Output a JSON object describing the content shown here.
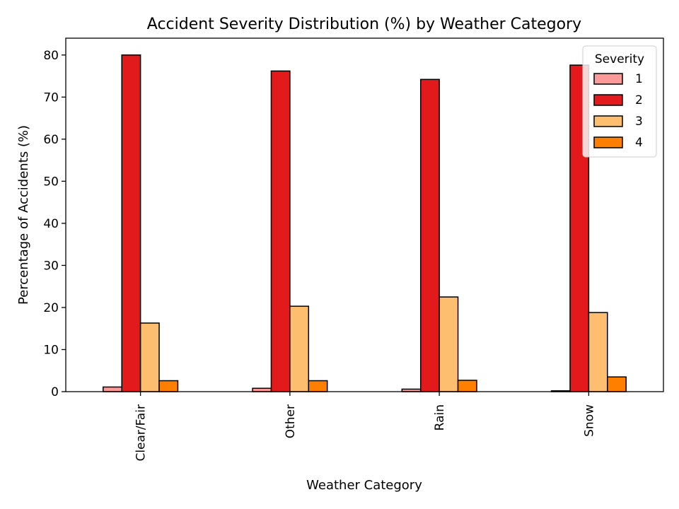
{
  "chart_data": {
    "type": "bar",
    "title": "Accident Severity Distribution (%) by Weather Category",
    "xlabel": "Weather Category",
    "ylabel": "Percentage of Accidents (%)",
    "categories": [
      "Clear/Fair",
      "Other",
      "Rain",
      "Snow"
    ],
    "ylim": [
      0,
      84
    ],
    "yticks": [
      0,
      10,
      20,
      30,
      40,
      50,
      60,
      70,
      80
    ],
    "grid": false,
    "legend": {
      "title": "Severity",
      "placement": "top-right"
    },
    "series": [
      {
        "name": "1",
        "color": "#fb9a99",
        "values": [
          1.1,
          0.8,
          0.6,
          0.2
        ]
      },
      {
        "name": "2",
        "color": "#e31a1c",
        "values": [
          80.0,
          76.2,
          74.2,
          77.6
        ]
      },
      {
        "name": "3",
        "color": "#fdbf6f",
        "values": [
          16.3,
          20.3,
          22.5,
          18.8
        ]
      },
      {
        "name": "4",
        "color": "#ff7f00",
        "values": [
          2.6,
          2.6,
          2.7,
          3.5
        ]
      }
    ]
  }
}
